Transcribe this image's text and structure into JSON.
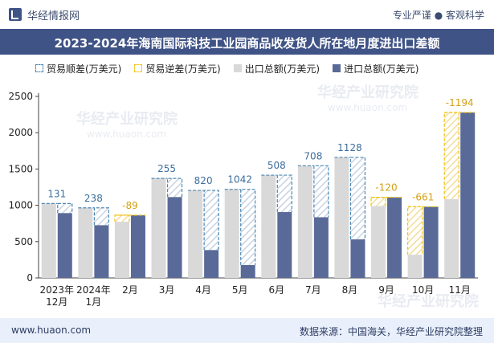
{
  "header": {
    "brand": "华经情报网",
    "tagline": "专业严谨 ● 客观科学",
    "title": "2023-2024年海南国际科技工业园商品收发货人所在地月度进出口差额"
  },
  "legend": [
    {
      "label": "贸易顺差(万美元)",
      "kind": "surplus"
    },
    {
      "label": "贸易逆差(万美元)",
      "kind": "deficit"
    },
    {
      "label": "出口总额(万美元)",
      "kind": "export"
    },
    {
      "label": "进口总额(万美元)",
      "kind": "import"
    }
  ],
  "watermarks": [
    "华经产业研究院",
    "www.huaon.com"
  ],
  "colors": {
    "export": "#d9d9d9",
    "import": "#5a6a98",
    "surplus_border": "#4a87b5",
    "deficit_border": "#f0c419",
    "surplus_label": "#3d6e9e",
    "deficit_label": "#d4a017",
    "title_bg": "#3f5386"
  },
  "footer": {
    "left": "www.huaon.com",
    "right": "数据来源：中国海关，华经产业研究院整理"
  },
  "chart_data": {
    "type": "bar",
    "categories": [
      [
        "2023年",
        "12月"
      ],
      [
        "2024年",
        "1月"
      ],
      [
        "2月"
      ],
      [
        "3月"
      ],
      [
        "4月"
      ],
      [
        "5月"
      ],
      [
        "6月"
      ],
      [
        "7月"
      ],
      [
        "8月"
      ],
      [
        "9月"
      ],
      [
        "10月"
      ],
      [
        "11月"
      ]
    ],
    "series": [
      {
        "name": "出口总额(万美元)",
        "values": [
          1025,
          965,
          775,
          1370,
          1205,
          1220,
          1415,
          1545,
          1660,
          990,
          320,
          1085
        ]
      },
      {
        "name": "进口总额(万美元)",
        "values": [
          894,
          727,
          864,
          1115,
          385,
          178,
          907,
          837,
          532,
          1110,
          981,
          2279
        ]
      }
    ],
    "balance_labels": [
      "131",
      "238",
      "-89",
      "255",
      "820",
      "1042",
      "508",
      "708",
      "1128",
      "-120",
      "-661",
      "-1194"
    ],
    "ylim": [
      0,
      2500
    ],
    "yticks": [
      0,
      500,
      1000,
      1500,
      2000,
      2500
    ],
    "grid": false
  }
}
